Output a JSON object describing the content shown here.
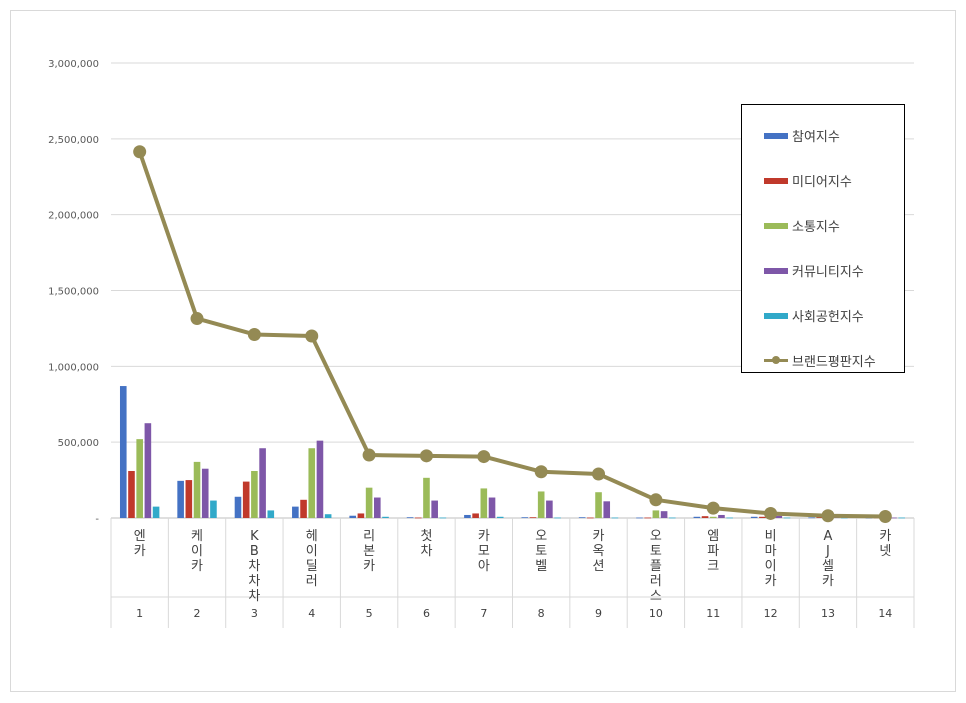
{
  "chart_data": {
    "type": "bar",
    "categories": [
      "엔카",
      "케이카",
      "KB차차차",
      "헤이딜러",
      "리본카",
      "첫차",
      "카모아",
      "오토벨",
      "카옥션",
      "오토플러스",
      "엠파크",
      "비마이카",
      "AJ셀카",
      "카넷"
    ],
    "ranks": [
      "1",
      "2",
      "3",
      "4",
      "5",
      "6",
      "7",
      "8",
      "9",
      "10",
      "11",
      "12",
      "13",
      "14"
    ],
    "ylim": [
      0,
      3000000
    ],
    "yticks": [
      "-",
      "500,000",
      "1,000,000",
      "1,500,000",
      "2,000,000",
      "2,500,000",
      "3,000,000"
    ],
    "grid": true,
    "legend_position": "right",
    "series": [
      {
        "name": "참여지수",
        "color": "#4472C4",
        "kind": "bar",
        "values": [
          870000,
          245000,
          140000,
          75000,
          15000,
          5000,
          20000,
          5000,
          5000,
          3000,
          8000,
          8000,
          4000,
          2000
        ]
      },
      {
        "name": "미디어지수",
        "color": "#C0392B",
        "kind": "bar",
        "values": [
          310000,
          250000,
          240000,
          120000,
          30000,
          3000,
          30000,
          5000,
          3000,
          3000,
          12000,
          8000,
          6000,
          3000
        ]
      },
      {
        "name": "소통지수",
        "color": "#9BBB59",
        "kind": "bar",
        "values": [
          520000,
          370000,
          310000,
          460000,
          200000,
          265000,
          195000,
          175000,
          170000,
          50000,
          8000,
          5000,
          5000,
          3000
        ]
      },
      {
        "name": "커뮤니티지수",
        "color": "#7E57A8",
        "kind": "bar",
        "values": [
          625000,
          325000,
          460000,
          510000,
          135000,
          115000,
          135000,
          115000,
          110000,
          45000,
          20000,
          15000,
          8000,
          3000
        ]
      },
      {
        "name": "사회공헌지수",
        "color": "#31A9C9",
        "kind": "bar",
        "values": [
          75000,
          115000,
          50000,
          25000,
          8000,
          3000,
          8000,
          3000,
          3000,
          3000,
          3000,
          3000,
          3000,
          3000
        ]
      },
      {
        "name": "브랜드평판지수",
        "color": "#948A54",
        "kind": "line",
        "values": [
          2415000,
          1315000,
          1210000,
          1200000,
          415000,
          410000,
          405000,
          305000,
          290000,
          120000,
          65000,
          30000,
          15000,
          10000
        ]
      }
    ]
  }
}
